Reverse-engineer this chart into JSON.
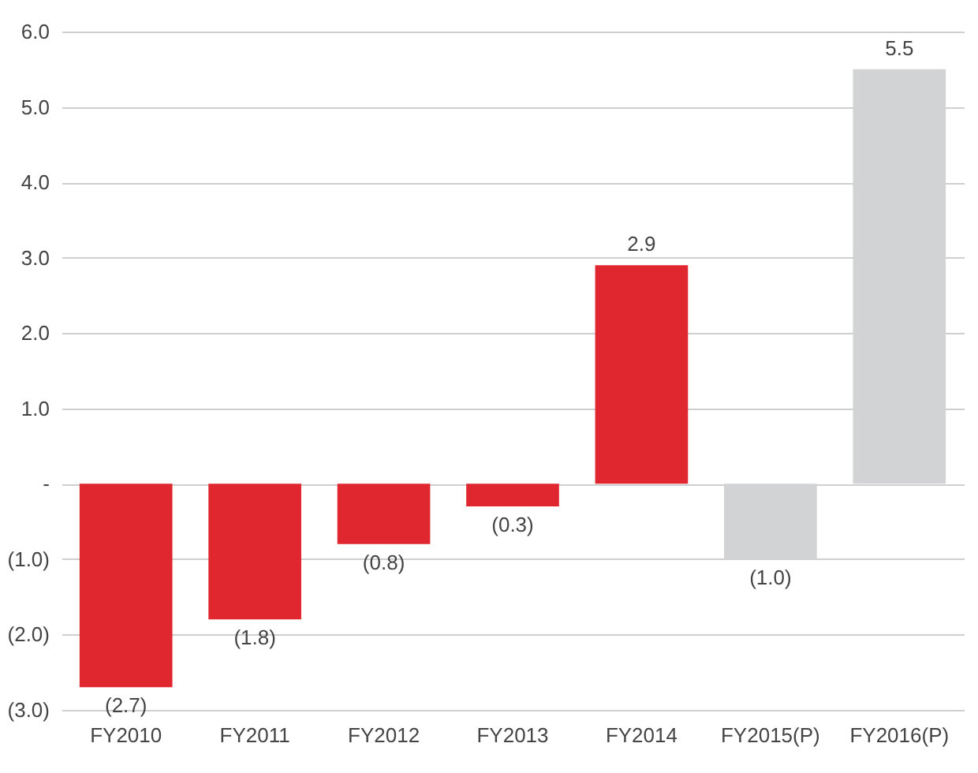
{
  "chart_data": {
    "type": "bar",
    "categories": [
      "FY2010",
      "FY2011",
      "FY2012",
      "FY2013",
      "FY2014",
      "FY2015(P)",
      "FY2016(P)"
    ],
    "values": [
      -2.7,
      -1.8,
      -0.8,
      -0.3,
      2.9,
      -1.0,
      5.5
    ],
    "colors": [
      "#e0262e",
      "#e0262e",
      "#e0262e",
      "#e0262e",
      "#e0262e",
      "#d1d3d4",
      "#d1d3d4"
    ],
    "value_labels": [
      "(2.7)",
      "(1.8)",
      "(0.8)",
      "(0.3)",
      "2.9",
      "(1.0)",
      "5.5"
    ],
    "ylim": [
      -3,
      6
    ],
    "yticks": [
      {
        "value": -3,
        "label": "(3.0)"
      },
      {
        "value": -2,
        "label": "(2.0)"
      },
      {
        "value": -1,
        "label": "(1.0)"
      },
      {
        "value": 0,
        "label": "-"
      },
      {
        "value": 1,
        "label": "1.0"
      },
      {
        "value": 2,
        "label": "2.0"
      },
      {
        "value": 3,
        "label": "3.0"
      },
      {
        "value": 4,
        "label": "4.0"
      },
      {
        "value": 5,
        "label": "5.0"
      },
      {
        "value": 6,
        "label": "6.0"
      }
    ],
    "grid": "y"
  }
}
